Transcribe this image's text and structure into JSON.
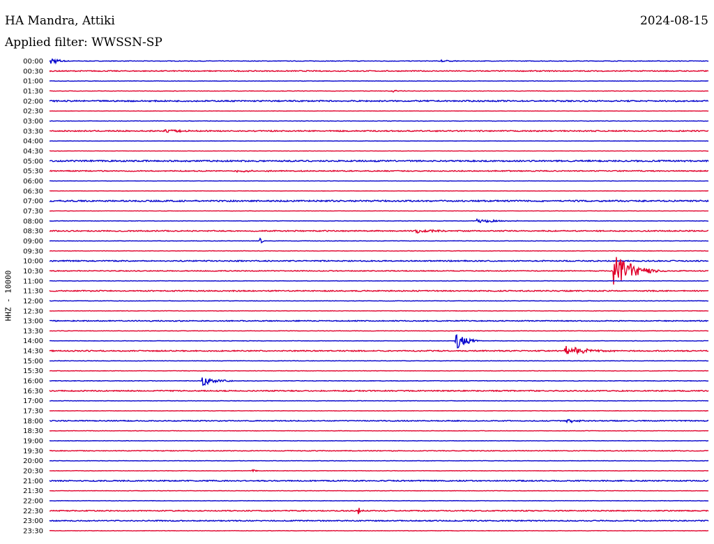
{
  "header": {
    "station": "HA Mandra, Attiki",
    "date": "2024-08-15",
    "filter_label": "Applied filter: WWSSN-SP",
    "channel_label": "HHZ - 10000"
  },
  "chart_data": {
    "type": "line",
    "title": "HA Mandra, Attiki",
    "ylabel": "HHZ - 10000",
    "row_labels": [
      "00:00",
      "00:30",
      "01:00",
      "01:30",
      "02:00",
      "02:30",
      "03:00",
      "03:30",
      "04:00",
      "04:30",
      "05:00",
      "05:30",
      "06:00",
      "06:30",
      "07:00",
      "07:30",
      "08:00",
      "08:30",
      "09:00",
      "09:30",
      "10:00",
      "10:30",
      "11:00",
      "11:30",
      "12:00",
      "12:30",
      "13:00",
      "13:30",
      "14:00",
      "14:30",
      "15:00",
      "15:30",
      "16:00",
      "16:30",
      "17:00",
      "17:30",
      "18:00",
      "18:30",
      "19:00",
      "19:30",
      "20:00",
      "20:30",
      "21:00",
      "21:30",
      "22:00",
      "22:30",
      "23:00",
      "23:30"
    ],
    "trace_colors": [
      "#0000cc",
      "#e0002a"
    ],
    "row_duration_minutes": 30,
    "noise_levels": [
      0.4,
      0.7,
      0.3,
      0.3,
      0.9,
      0.2,
      0.3,
      0.8,
      0.2,
      0.2,
      1.0,
      0.7,
      0.2,
      0.2,
      1.0,
      0.2,
      0.3,
      0.8,
      0.3,
      0.3,
      0.8,
      0.6,
      0.3,
      0.8,
      0.3,
      0.3,
      0.7,
      0.3,
      0.3,
      0.8,
      0.3,
      0.3,
      0.4,
      0.8,
      0.3,
      0.3,
      0.7,
      0.3,
      0.3,
      0.5,
      0.3,
      0.3,
      0.8,
      0.3,
      0.3,
      0.7,
      0.7,
      0.3
    ],
    "events": [
      {
        "row": 0,
        "minute": 0.1,
        "amplitude": 6,
        "duration_min": 0.3
      },
      {
        "row": 0,
        "minute": 17.8,
        "amplitude": 2,
        "duration_min": 0.4
      },
      {
        "row": 3,
        "minute": 15.6,
        "amplitude": 1.5,
        "duration_min": 0.4
      },
      {
        "row": 7,
        "minute": 5.3,
        "amplitude": 1.5,
        "duration_min": 1.5
      },
      {
        "row": 11,
        "minute": 8.5,
        "amplitude": 1.5,
        "duration_min": 1.2
      },
      {
        "row": 16,
        "minute": 19.5,
        "amplitude": 3,
        "duration_min": 0.8
      },
      {
        "row": 17,
        "minute": 16.7,
        "amplitude": 4,
        "duration_min": 0.6
      },
      {
        "row": 18,
        "minute": 9.6,
        "amplitude": 4,
        "duration_min": 0.1
      },
      {
        "row": 21,
        "minute": 25.7,
        "amplitude": 25,
        "duration_min": 0.8
      },
      {
        "row": 28,
        "minute": 18.5,
        "amplitude": 14,
        "duration_min": 0.4
      },
      {
        "row": 29,
        "minute": 23.5,
        "amplitude": 8,
        "duration_min": 0.8
      },
      {
        "row": 32,
        "minute": 7.0,
        "amplitude": 7,
        "duration_min": 0.5
      },
      {
        "row": 36,
        "minute": 23.6,
        "amplitude": 4,
        "duration_min": 0.3
      },
      {
        "row": 41,
        "minute": 9.2,
        "amplitude": 5,
        "duration_min": 0.1
      },
      {
        "row": 45,
        "minute": 14.1,
        "amplitude": 7,
        "duration_min": 0.1
      }
    ]
  }
}
